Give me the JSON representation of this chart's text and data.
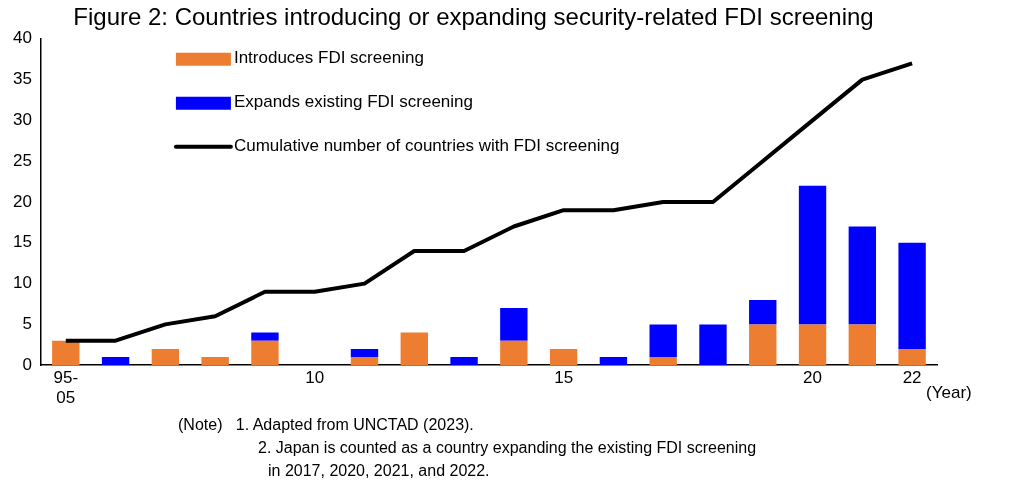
{
  "chart_data": {
    "type": "bar",
    "title": "Figure 2: Countries introducing or expanding security-related FDI screening",
    "xlabel": "(Year)",
    "categories": [
      "95-\n05",
      null,
      null,
      null,
      null,
      "10",
      null,
      null,
      null,
      null,
      "15",
      null,
      null,
      null,
      null,
      "20",
      null,
      "22"
    ],
    "stacked": true,
    "series": [
      {
        "name": "Introduces FDI screening",
        "color": "#ed7d31",
        "values": [
          3,
          0,
          2,
          1,
          3,
          0,
          1,
          4,
          0,
          3,
          2,
          0,
          1,
          0,
          5,
          5,
          5,
          2
        ]
      },
      {
        "name": "Expands existing FDI screening",
        "color": "#0000ff",
        "values": [
          0,
          1,
          0,
          0,
          1,
          0,
          1,
          0,
          1,
          4,
          0,
          1,
          4,
          5,
          3,
          17,
          12,
          13
        ]
      },
      {
        "name": "Cumulative number of countries with FDI screening",
        "type": "line",
        "color": "#000000",
        "marker": "none",
        "values": [
          3,
          3,
          5,
          6,
          9,
          9,
          10,
          14,
          14,
          17,
          19,
          19,
          20,
          20,
          25,
          30,
          35,
          37
        ]
      }
    ],
    "ylim": [
      0,
      40
    ],
    "yticks": [
      0,
      5,
      10,
      15,
      20,
      25,
      30,
      35,
      40
    ],
    "grid": false,
    "legend": "top left",
    "annotations": [
      "(Note)   1. Adapted from UNCTAD (2023).",
      "2. Japan is counted as a country expanding the existing FDI screening",
      "in 2017, 2020, 2021, and 2022."
    ]
  }
}
